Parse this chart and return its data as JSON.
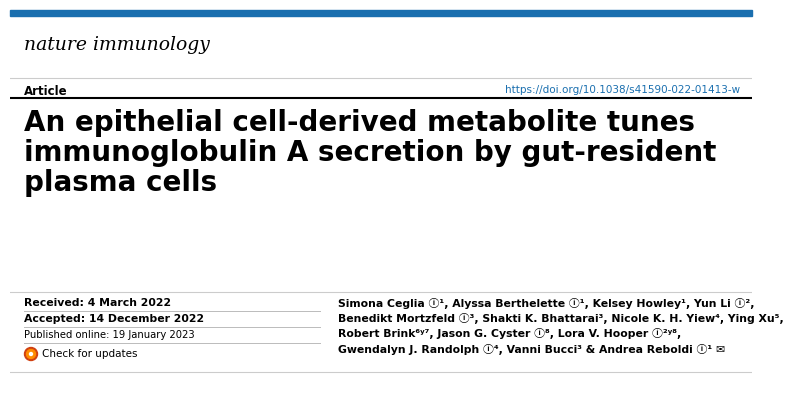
{
  "bg_color": "#ffffff",
  "top_bar_color": "#1a6faf",
  "journal_name": "nature immunology",
  "article_label": "Article",
  "doi_text": "https://doi.org/10.1038/s41590-022-01413-w",
  "doi_color": "#1a6faf",
  "title_line1": "An epithelial cell-derived metabolite tunes",
  "title_line2": "immunoglobulin A secretion by gut-resident",
  "title_line3": "plasma cells",
  "received": "Received: 4 March 2022",
  "accepted": "Accepted: 14 December 2022",
  "published": "Published online: 19 January 2023",
  "check_updates": "Check for updates",
  "authors_line1": "Simona Ceglia ⓘ¹, Alyssa Berthelette ⓘ¹, Kelsey Howley¹, Yun Li ⓘ²,",
  "authors_line2": "Benedikt Mortzfeld ⓘ³, Shakti K. Bhattarai³, Nicole K. H. Yiew⁴, Ying Xu⁵,",
  "authors_line3": "Robert Brink⁶ʸ⁷, Jason G. Cyster ⓘ⁸, Lora V. Hooper ⓘ²ʸ⁸,",
  "authors_line4": "Gwendalyn J. Randolph ⓘ⁴, Vanni Bucci³ & Andrea Reboldi ⓘ¹ ✉",
  "separator_color": "#cccccc",
  "divider_color": "#bbbbbb",
  "top_bar_height": 6
}
